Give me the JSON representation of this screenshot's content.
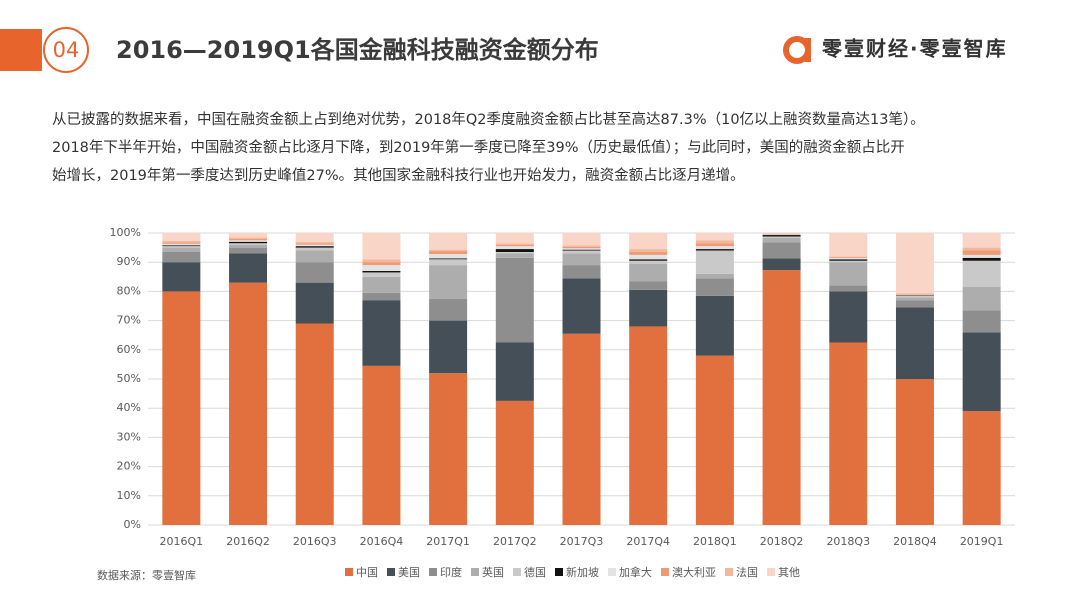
{
  "header": {
    "number": "04",
    "title": "2016—2019Q1各国金融科技融资金额分布",
    "brand": "零壹财经·零壹智库"
  },
  "body_lines": [
    "从已披露的数据来看，中国在融资金额上占到绝对优势，2018年Q2季度融资金额占比甚至高达87.3%（10亿以上融资数量高达13笔）。",
    "2018年下半年开始，中国融资金额占比逐月下降，到2019年第一季度已降至39%（历史最低值）；与此同时，美国的融资金额占比开",
    "始增长，2019年第一季度达到历史峰值27%。其他国家金融科技行业也开始发力，融资金额占比逐月递增。"
  ],
  "source": "数据来源：零壹智库",
  "chart_data": {
    "type": "stacked_bar",
    "categories": [
      "2016Q1",
      "2016Q2",
      "2016Q3",
      "2016Q4",
      "2017Q1",
      "2017Q2",
      "2017Q3",
      "2017Q4",
      "2018Q1",
      "2018Q2",
      "2018Q3",
      "2018Q4",
      "2019Q1"
    ],
    "series": [
      {
        "name": "中国",
        "color": "#e2703f",
        "values": [
          80,
          83,
          69,
          54.5,
          52,
          42.5,
          65.5,
          68,
          58,
          87.3,
          62.5,
          50,
          39
        ]
      },
      {
        "name": "美国",
        "color": "#454f57",
        "values": [
          10,
          10,
          14,
          22.5,
          18,
          20,
          19,
          12.5,
          20.5,
          4,
          17.5,
          24.5,
          27
        ]
      },
      {
        "name": "印度",
        "color": "#8e8e8e",
        "values": [
          3.5,
          2,
          7,
          2.5,
          7.5,
          29,
          4.5,
          3,
          6,
          5.5,
          2,
          2.5,
          7.5
        ]
      },
      {
        "name": "英国",
        "color": "#adadad",
        "values": [
          1.5,
          1,
          4,
          5.5,
          11.5,
          1.5,
          4,
          6,
          1.5,
          1.5,
          8,
          1,
          8
        ]
      },
      {
        "name": "德国",
        "color": "#c9c9c9",
        "values": [
          0.5,
          0.5,
          1,
          1.5,
          2,
          0.5,
          1,
          1,
          8,
          0.5,
          0.5,
          0.5,
          9
        ]
      },
      {
        "name": "新加坡",
        "color": "#111111",
        "values": [
          0.3,
          0.5,
          0.5,
          0.5,
          0.3,
          1,
          0.3,
          0.5,
          0.5,
          0.5,
          0.5,
          0.2,
          1
        ]
      },
      {
        "name": "加拿大",
        "color": "#e3e3e3",
        "values": [
          0.5,
          0.5,
          0.5,
          2,
          1.5,
          1,
          0.5,
          1.5,
          1,
          0.2,
          0.5,
          0.2,
          1
        ]
      },
      {
        "name": "澳大利亚",
        "color": "#ee9a72",
        "values": [
          0.5,
          0.5,
          0.5,
          1,
          1,
          0.5,
          0.5,
          1,
          1,
          0.2,
          0.3,
          0.2,
          1.5
        ]
      },
      {
        "name": "法国",
        "color": "#f3b79c",
        "values": [
          0.5,
          0.5,
          0.5,
          1,
          0.5,
          0.5,
          0.5,
          1,
          1,
          0.1,
          0.2,
          0.2,
          1
        ]
      },
      {
        "name": "其他",
        "color": "#f8d5c6",
        "values": [
          2.7,
          1.5,
          3,
          9,
          5.7,
          3.5,
          4.2,
          5.5,
          2.5,
          0.2,
          8,
          20.7,
          5
        ]
      }
    ],
    "ylim": [
      0,
      100
    ],
    "yticks": [
      {
        "value": 0,
        "label": "0%"
      },
      {
        "value": 10,
        "label": "10%"
      },
      {
        "value": 20,
        "label": "20%"
      },
      {
        "value": 30,
        "label": "30%"
      },
      {
        "value": 40,
        "label": "40%"
      },
      {
        "value": 50,
        "label": "50%"
      },
      {
        "value": 60,
        "label": "60%"
      },
      {
        "value": 70,
        "label": "70%"
      },
      {
        "value": 80,
        "label": "80%"
      },
      {
        "value": 90,
        "label": "90%"
      },
      {
        "value": 100,
        "label": "100%"
      }
    ],
    "grid": true,
    "legend": "bottom"
  }
}
